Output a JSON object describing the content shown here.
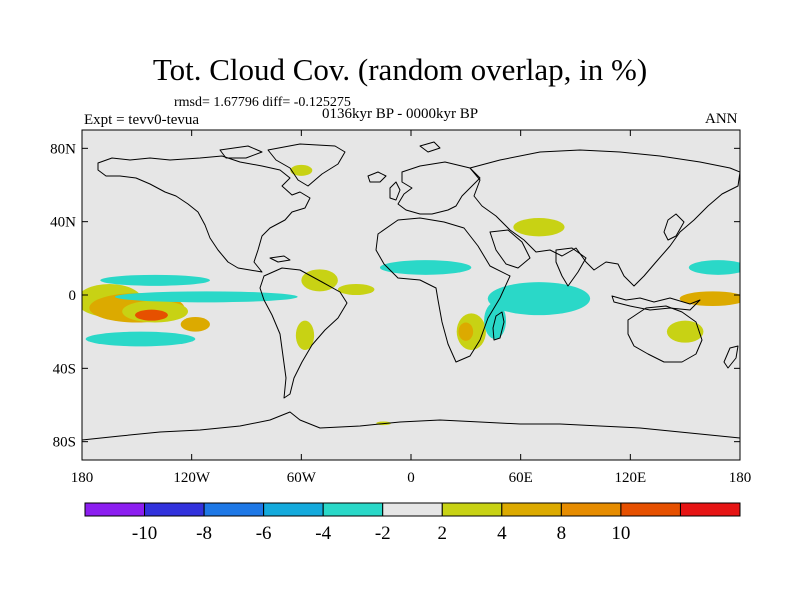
{
  "title": "Tot. Cloud Cov. (random overlap, in %)",
  "stats": "rmsd= 1.67796 diff= -0.125275",
  "experiment": "Expt = tevv0-tevua",
  "period": "0136kyr BP - 0000kyr BP",
  "season": "ANN",
  "map": {
    "projection": "cylindrical-equidistant",
    "lon_range": [
      -180,
      180
    ],
    "lat_range": [
      -90,
      90
    ],
    "background_color": "#e6e6e6",
    "x_ticks": [
      {
        "value": -180,
        "label": "180"
      },
      {
        "value": -120,
        "label": "120W"
      },
      {
        "value": -60,
        "label": "60W"
      },
      {
        "value": 0,
        "label": "0"
      },
      {
        "value": 60,
        "label": "60E"
      },
      {
        "value": 120,
        "label": "120E"
      },
      {
        "value": 180,
        "label": "180"
      }
    ],
    "y_ticks": [
      {
        "value": 80,
        "label": "80N"
      },
      {
        "value": 40,
        "label": "40N"
      },
      {
        "value": 0,
        "label": "0"
      },
      {
        "value": -40,
        "label": "40S"
      },
      {
        "value": -80,
        "label": "80S"
      }
    ]
  },
  "colorbar": {
    "colors": [
      "#8c1ef0",
      "#3232dc",
      "#1e78e6",
      "#14aadc",
      "#2ad8c8",
      "#e6e6e6",
      "#c8d214",
      "#dcaa00",
      "#e68c00",
      "#e65000",
      "#e61414"
    ],
    "labels": [
      {
        "after_box": 1,
        "label": "-10"
      },
      {
        "after_box": 2,
        "label": "-8"
      },
      {
        "after_box": 3,
        "label": "-6"
      },
      {
        "after_box": 4,
        "label": "-4"
      },
      {
        "after_box": 5,
        "label": "-2"
      },
      {
        "after_box": 6,
        "label": "2"
      },
      {
        "after_box": 7,
        "label": "4"
      },
      {
        "after_box": 8,
        "label": "8"
      },
      {
        "after_box": 9,
        "label": "10"
      }
    ]
  },
  "anomaly_regions": [
    {
      "level": "2-4",
      "lon": -165,
      "lat": -3,
      "rlon": 18,
      "rlat": 9
    },
    {
      "level": "4-8",
      "lon": -150,
      "lat": -7,
      "rlon": 26,
      "rlat": 8
    },
    {
      "level": "2-4",
      "lon": -140,
      "lat": -9,
      "rlon": 18,
      "rlat": 6
    },
    {
      "level": "8-10",
      "lon": -142,
      "lat": -11,
      "rlon": 9,
      "rlat": 3
    },
    {
      "level": "4-8",
      "lon": -118,
      "lat": -16,
      "rlon": 8,
      "rlat": 4
    },
    {
      "level": "-4--2",
      "lon": -140,
      "lat": 8,
      "rlon": 30,
      "rlat": 3
    },
    {
      "level": "-4--2",
      "lon": -112,
      "lat": -1,
      "rlon": 50,
      "rlat": 3
    },
    {
      "level": "-4--2",
      "lon": -148,
      "lat": -24,
      "rlon": 30,
      "rlat": 4
    },
    {
      "level": "2-4",
      "lon": -50,
      "lat": 8,
      "rlon": 10,
      "rlat": 6
    },
    {
      "level": "2-4",
      "lon": -30,
      "lat": 3,
      "rlon": 10,
      "rlat": 3
    },
    {
      "level": "2-4",
      "lon": -58,
      "lat": -22,
      "rlon": 5,
      "rlat": 8
    },
    {
      "level": "2-4",
      "lon": 33,
      "lat": -20,
      "rlon": 8,
      "rlat": 10
    },
    {
      "level": "4-8",
      "lon": 30,
      "lat": -20,
      "rlon": 4,
      "rlat": 5
    },
    {
      "level": "-4--2",
      "lon": 46,
      "lat": -14,
      "rlon": 6,
      "rlat": 10
    },
    {
      "level": "-4--2",
      "lon": 70,
      "lat": -2,
      "rlon": 28,
      "rlat": 9
    },
    {
      "level": "-4--2",
      "lon": 8,
      "lat": 15,
      "rlon": 25,
      "rlat": 4
    },
    {
      "level": "2-4",
      "lon": 70,
      "lat": 37,
      "rlon": 14,
      "rlat": 5
    },
    {
      "level": "-4--2",
      "lon": 168,
      "lat": 15,
      "rlon": 16,
      "rlat": 4
    },
    {
      "level": "4-8",
      "lon": 165,
      "lat": -2,
      "rlon": 18,
      "rlat": 4
    },
    {
      "level": "2-4",
      "lon": 150,
      "lat": -20,
      "rlon": 10,
      "rlat": 6
    },
    {
      "level": "2-4",
      "lon": -60,
      "lat": 68,
      "rlon": 6,
      "rlat": 3
    },
    {
      "level": "2-4",
      "lon": -15,
      "lat": -70,
      "rlon": 4,
      "rlat": 1
    }
  ]
}
